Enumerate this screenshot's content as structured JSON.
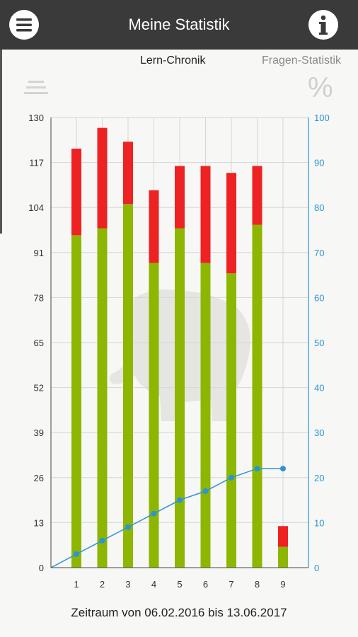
{
  "app": {
    "title": "Meine Statistik"
  },
  "tabs": [
    {
      "label": "Lern-Chronik",
      "active": true
    },
    {
      "label": "Fragen-Statistik",
      "active": false
    }
  ],
  "icons": {
    "menu": "menu-icon",
    "info": "info-icon",
    "list": "list-icon",
    "percent": "percent-icon"
  },
  "percent_symbol": "%",
  "footer": {
    "period": "Zeitraum von 06.02.2016 bis 13.06.2017"
  },
  "colors": {
    "correct": "#8db600",
    "wrong": "#ee2222",
    "line": "#2b94d6",
    "right_axis": "#2b94d6"
  },
  "chart_data": {
    "type": "bar",
    "categories": [
      "1",
      "2",
      "3",
      "4",
      "5",
      "6",
      "7",
      "8",
      "9"
    ],
    "stacked": true,
    "series": [
      {
        "name": "",
        "color": "#8db600",
        "values": [
          96,
          98,
          105,
          88,
          98,
          88,
          85,
          99,
          6
        ]
      },
      {
        "name": "",
        "color": "#ee2222",
        "values": [
          25,
          29,
          18,
          21,
          18,
          28,
          29,
          17,
          6
        ]
      }
    ],
    "line_series": {
      "name": "",
      "axis": "right",
      "values": [
        3,
        6,
        9,
        12,
        15,
        17,
        20,
        22,
        22
      ]
    },
    "left_axis": {
      "ylim": [
        0,
        130
      ],
      "ticks": [
        0,
        13,
        26,
        39,
        52,
        65,
        78,
        91,
        104,
        117,
        130
      ]
    },
    "right_axis": {
      "ylim": [
        0,
        100
      ],
      "ticks": [
        0,
        10,
        20,
        30,
        40,
        50,
        60,
        70,
        80,
        90,
        100
      ]
    },
    "title": "",
    "xlabel": "",
    "ylabel": "",
    "grid": true
  }
}
